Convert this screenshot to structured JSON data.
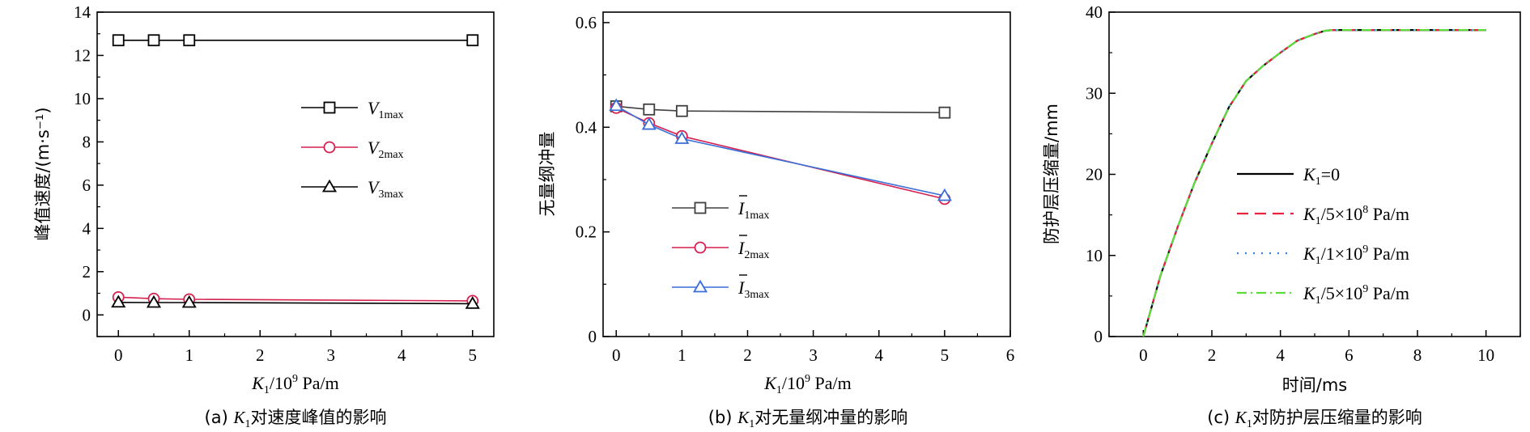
{
  "colors": {
    "black": "#000000",
    "crimson": "#d6204f",
    "blue": "#3a6fd8",
    "dashRed": "#e8213f",
    "dotBlue": "#3380e0",
    "green": "#5ddc3a",
    "squareGray": "#404040"
  },
  "chart_data": [
    {
      "type": "line",
      "caption": {
        "prefix": "(a) ",
        "K": "K",
        "sub": "1",
        "rest": "对速度峰值的影响"
      },
      "xlabel": {
        "K": "K",
        "sub": "1",
        "slash": "/10",
        "sup": "9",
        "unit": " Pa/m"
      },
      "ylabel": "峰值速度/(m·s⁻¹)",
      "xlim": [
        -0.3,
        5.3
      ],
      "ylim": [
        -1,
        14
      ],
      "xticks": [
        "0",
        "1",
        "2",
        "3",
        "4",
        "5"
      ],
      "yticks": [
        "0",
        "2",
        "4",
        "6",
        "8",
        "10",
        "12",
        "14"
      ],
      "x": [
        0,
        0.5,
        1,
        5
      ],
      "series": [
        {
          "name": "V",
          "sub": "1max",
          "marker": "square",
          "color": "#000000",
          "values": [
            12.7,
            12.7,
            12.7,
            12.7
          ]
        },
        {
          "name": "V",
          "sub": "2max",
          "marker": "circle",
          "color": "#d6204f",
          "values": [
            0.82,
            0.75,
            0.72,
            0.65
          ]
        },
        {
          "name": "V",
          "sub": "3max",
          "marker": "triangle",
          "color": "#000000",
          "values": [
            0.58,
            0.57,
            0.57,
            0.52
          ]
        }
      ]
    },
    {
      "type": "line",
      "caption": {
        "prefix": "(b) ",
        "K": "K",
        "sub": "1",
        "rest": "对无量纲冲量的影响"
      },
      "xlabel": {
        "K": "K",
        "sub": "1",
        "slash": "/10",
        "sup": "9",
        "unit": " Pa/m"
      },
      "ylabel": "无量纲冲量",
      "xlim": [
        -0.2,
        6
      ],
      "ylim": [
        0,
        0.62
      ],
      "xticks": [
        "0",
        "1",
        "2",
        "3",
        "4",
        "5",
        "6"
      ],
      "yticks": [
        "0",
        "0.2",
        "0.4",
        "0.6"
      ],
      "x": [
        0,
        0.5,
        1,
        5
      ],
      "series": [
        {
          "name": "I",
          "sub": "1max",
          "marker": "square",
          "color": "#404040",
          "values": [
            0.44,
            0.434,
            0.431,
            0.428
          ]
        },
        {
          "name": "I",
          "sub": "2max",
          "marker": "circle",
          "color": "#d6204f",
          "values": [
            0.437,
            0.408,
            0.383,
            0.263
          ]
        },
        {
          "name": "I",
          "sub": "3max",
          "marker": "triangle",
          "color": "#3a6fd8",
          "values": [
            0.441,
            0.405,
            0.378,
            0.269
          ]
        }
      ]
    },
    {
      "type": "line",
      "caption": {
        "prefix": "(c) ",
        "K": "K",
        "sub": "1",
        "rest": "对防护层压缩量的影响"
      },
      "xlabel": "时间/ms",
      "ylabel": "防护层压缩量/mm",
      "xlim": [
        -1,
        11
      ],
      "ylim": [
        0,
        40
      ],
      "xticks": [
        "0",
        "2",
        "4",
        "6",
        "8",
        "10"
      ],
      "yticks": [
        "0",
        "10",
        "20",
        "30",
        "40"
      ],
      "x": [
        0,
        0.5,
        1,
        1.5,
        2,
        2.5,
        3,
        3.5,
        4,
        4.5,
        5,
        5.3,
        5.5,
        6,
        7,
        8,
        9,
        10
      ],
      "series": [
        {
          "name": "K",
          "sub": "1",
          "suffix": "=0",
          "style": "solid",
          "color": "#000000",
          "values": [
            0,
            7.5,
            13.5,
            19,
            23.8,
            28.3,
            31.5,
            33.4,
            35,
            36.5,
            37.3,
            37.7,
            37.8,
            37.8,
            37.8,
            37.8,
            37.8,
            37.8
          ]
        },
        {
          "name": "K",
          "sub": "1",
          "suffix": "/5×10",
          "sup": "8",
          "unit": " Pa/m",
          "style": "dash",
          "color": "#e8213f",
          "values": [
            0,
            7.5,
            13.5,
            19,
            23.8,
            28.3,
            31.5,
            33.4,
            35,
            36.5,
            37.3,
            37.7,
            37.8,
            37.8,
            37.8,
            37.8,
            37.8,
            37.8
          ]
        },
        {
          "name": "K",
          "sub": "1",
          "suffix": "/1×10",
          "sup": "9",
          "unit": " Pa/m",
          "style": "dot",
          "color": "#3380e0",
          "values": [
            0,
            7.5,
            13.5,
            19,
            23.8,
            28.3,
            31.5,
            33.4,
            35,
            36.5,
            37.3,
            37.7,
            37.8,
            37.8,
            37.8,
            37.8,
            37.8,
            37.8
          ]
        },
        {
          "name": "K",
          "sub": "1",
          "suffix": "/5×10",
          "sup": "9",
          "unit": " Pa/m",
          "style": "dashdot",
          "color": "#5ddc3a",
          "values": [
            0,
            7.5,
            13.5,
            19,
            23.8,
            28.3,
            31.5,
            33.4,
            35,
            36.5,
            37.3,
            37.7,
            37.8,
            37.8,
            37.8,
            37.8,
            37.8,
            37.8
          ]
        }
      ]
    }
  ]
}
